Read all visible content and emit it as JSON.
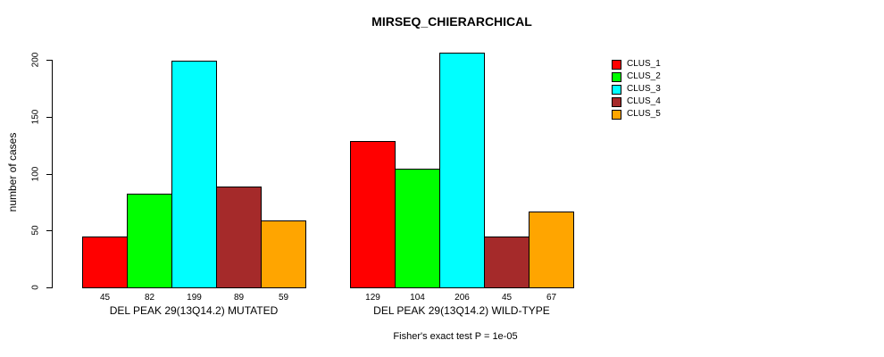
{
  "title": "MIRSEQ_CHIERARCHICAL",
  "y_axis": {
    "label": "number of cases",
    "ticks": [
      0,
      50,
      100,
      150,
      200
    ]
  },
  "footnote": "Fisher's exact test P = 1e-05",
  "chart_data": {
    "type": "bar",
    "title": "MIRSEQ_CHIERARCHICAL",
    "xlabel": "",
    "ylabel": "number of cases",
    "ylim": [
      0,
      200
    ],
    "yticks": [
      0,
      50,
      100,
      150,
      200
    ],
    "grid": false,
    "legend_position": "right",
    "bar_value_labels": true,
    "categories": [
      "DEL PEAK 29(13Q14.2) MUTATED",
      "DEL PEAK 29(13Q14.2) WILD-TYPE"
    ],
    "series": [
      {
        "name": "CLUS_1",
        "color": "#FF0000",
        "values": [
          45,
          129
        ]
      },
      {
        "name": "CLUS_2",
        "color": "#00FF00",
        "values": [
          82,
          104
        ]
      },
      {
        "name": "CLUS_3",
        "color": "#00FFFF",
        "values": [
          199,
          206
        ]
      },
      {
        "name": "CLUS_4",
        "color": "#A52A2A",
        "values": [
          89,
          45
        ]
      },
      {
        "name": "CLUS_5",
        "color": "#FFA500",
        "values": [
          59,
          67
        ]
      }
    ],
    "annotation": "Fisher's exact test P = 1e-05"
  }
}
